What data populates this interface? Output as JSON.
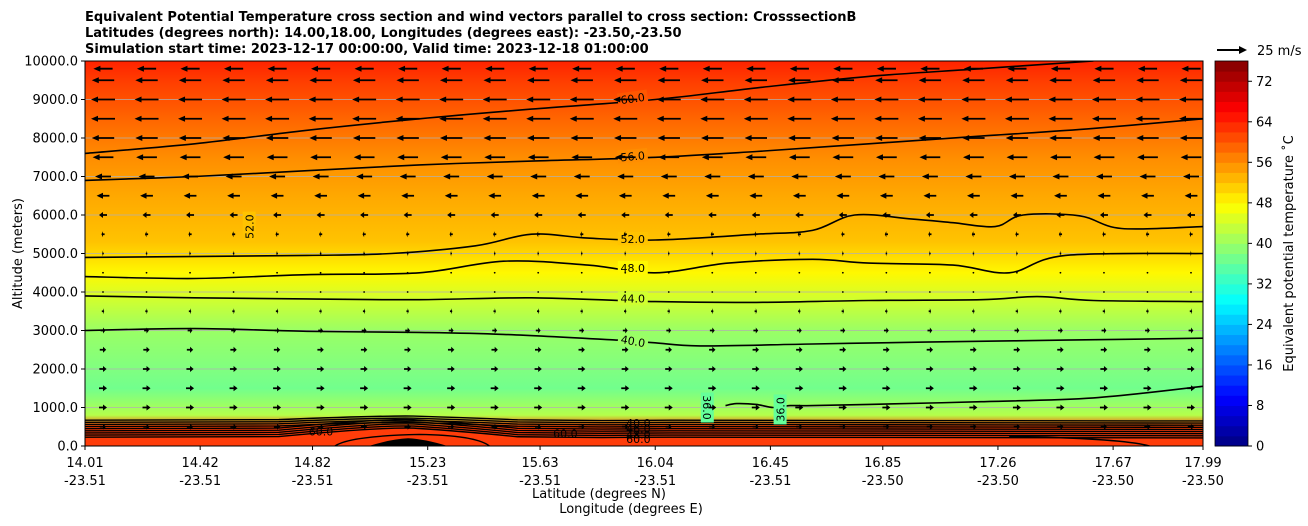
{
  "chart_data": {
    "type": "heatmap",
    "title_lines": [
      "Equivalent Potential Temperature cross section and wind vectors parallel to cross section: CrosssectionB",
      "Latitudes (degrees north): 14.00,18.00, Longitudes (degrees east): -23.50,-23.50",
      "Simulation start time: 2023-12-17 00:00:00, Valid time: 2023-12-18 01:00:00"
    ],
    "xlabel": "Latitude (degrees N)",
    "xlabel2": "Longitude (degrees E)",
    "ylabel": "Altitude (meters)",
    "ylim": [
      0,
      10000
    ],
    "y_ticks": [
      "0.0",
      "1000.0",
      "2000.0",
      "3000.0",
      "4000.0",
      "5000.0",
      "6000.0",
      "7000.0",
      "8000.0",
      "9000.0",
      "10000.0"
    ],
    "y_tick_values": [
      0,
      1000,
      2000,
      3000,
      4000,
      5000,
      6000,
      7000,
      8000,
      9000,
      10000
    ],
    "x_range": [
      14.01,
      17.99
    ],
    "x_ticks_lat": [
      "14.01",
      "14.42",
      "14.82",
      "15.23",
      "15.63",
      "16.04",
      "16.45",
      "16.85",
      "17.26",
      "17.67",
      "17.99"
    ],
    "x_ticks_lon": [
      "-23.51",
      "-23.51",
      "-23.51",
      "-23.51",
      "-23.51",
      "-23.51",
      "-23.51",
      "-23.50",
      "-23.50",
      "-23.50",
      "-23.50"
    ],
    "x_tick_values": [
      14.01,
      14.42,
      14.82,
      15.23,
      15.63,
      16.04,
      16.45,
      16.85,
      17.26,
      17.67,
      17.99
    ],
    "colorbar": {
      "label": "Equivalent potential temperature ˚C",
      "range": [
        0,
        76
      ],
      "ticks": [
        "0",
        "8",
        "16",
        "24",
        "32",
        "40",
        "48",
        "56",
        "64",
        "72"
      ],
      "tick_values": [
        0,
        8,
        16,
        24,
        32,
        40,
        48,
        56,
        64,
        72
      ]
    },
    "quiver_key": {
      "label": "25 m/s",
      "magnitude": 25
    },
    "theta_e_profile": [
      {
        "alt": 0,
        "value": 62
      },
      {
        "alt": 500,
        "value": 62
      },
      {
        "alt": 800,
        "value": 42
      },
      {
        "alt": 1500,
        "value": 37
      },
      {
        "alt": 2000,
        "value": 38
      },
      {
        "alt": 3000,
        "value": 40
      },
      {
        "alt": 3800,
        "value": 44
      },
      {
        "alt": 4500,
        "value": 48
      },
      {
        "alt": 5300,
        "value": 52
      },
      {
        "alt": 6500,
        "value": 54
      },
      {
        "alt": 7500,
        "value": 56
      },
      {
        "alt": 8500,
        "value": 59
      },
      {
        "alt": 9500,
        "value": 62
      },
      {
        "alt": 10000,
        "value": 64
      }
    ],
    "contours": [
      {
        "level": "36.0",
        "points": [
          [
            16.29,
            1050
          ],
          [
            16.33,
            1100
          ],
          [
            16.4,
            1080
          ],
          [
            16.46,
            1000
          ],
          [
            16.52,
            1050
          ],
          [
            16.6,
            1050
          ],
          [
            16.8,
            1080
          ],
          [
            17.2,
            1150
          ],
          [
            17.6,
            1250
          ],
          [
            17.99,
            1550
          ]
        ],
        "labels": [
          {
            "text": "36.0",
            "x": 16.22,
            "y": 1000,
            "rot": 90
          },
          {
            "text": "36.0",
            "x": 16.49,
            "y": 950,
            "rot": -90
          }
        ]
      },
      {
        "level": "40.0",
        "points": [
          [
            14.01,
            3000
          ],
          [
            14.4,
            3050
          ],
          [
            14.8,
            2980
          ],
          [
            15.2,
            2950
          ],
          [
            15.5,
            2900
          ],
          [
            15.9,
            2750
          ],
          [
            16.04,
            2680
          ],
          [
            16.2,
            2600
          ],
          [
            16.6,
            2650
          ],
          [
            17.0,
            2700
          ],
          [
            17.5,
            2750
          ],
          [
            17.99,
            2800
          ]
        ],
        "labels": [
          {
            "text": "40.0",
            "x": 15.96,
            "y": 2700,
            "rot": 10
          }
        ]
      },
      {
        "level": "44.0",
        "points": [
          [
            14.01,
            3900
          ],
          [
            14.4,
            3850
          ],
          [
            14.8,
            3820
          ],
          [
            15.2,
            3800
          ],
          [
            15.6,
            3850
          ],
          [
            16.04,
            3750
          ],
          [
            16.4,
            3730
          ],
          [
            16.8,
            3780
          ],
          [
            17.2,
            3800
          ],
          [
            17.4,
            3880
          ],
          [
            17.6,
            3780
          ],
          [
            17.99,
            3750
          ]
        ],
        "labels": [
          {
            "text": "44.0",
            "x": 15.96,
            "y": 3800,
            "rot": 0
          }
        ]
      },
      {
        "level": "48.0",
        "points": [
          [
            14.01,
            4400
          ],
          [
            14.4,
            4350
          ],
          [
            14.8,
            4450
          ],
          [
            15.2,
            4500
          ],
          [
            15.5,
            4800
          ],
          [
            15.8,
            4700
          ],
          [
            16.04,
            4500
          ],
          [
            16.3,
            4750
          ],
          [
            16.6,
            4850
          ],
          [
            16.8,
            4750
          ],
          [
            17.1,
            4700
          ],
          [
            17.3,
            4500
          ],
          [
            17.5,
            4950
          ],
          [
            17.99,
            5000
          ]
        ],
        "labels": [
          {
            "text": "48.0",
            "x": 15.96,
            "y": 4600,
            "rot": 0
          }
        ]
      },
      {
        "level": "52.0",
        "points": [
          [
            14.01,
            4900
          ],
          [
            14.8,
            4950
          ],
          [
            15.1,
            5000
          ],
          [
            15.4,
            5200
          ],
          [
            15.6,
            5500
          ],
          [
            15.8,
            5400
          ],
          [
            16.04,
            5350
          ],
          [
            16.4,
            5500
          ],
          [
            16.6,
            5600
          ],
          [
            16.75,
            6000
          ],
          [
            16.95,
            5900
          ],
          [
            17.1,
            5800
          ],
          [
            17.25,
            5700
          ],
          [
            17.35,
            6000
          ],
          [
            17.55,
            5980
          ],
          [
            17.7,
            5650
          ],
          [
            17.99,
            5700
          ]
        ],
        "labels": [
          {
            "text": "52.0",
            "x": 15.96,
            "y": 5350,
            "rot": 0
          },
          {
            "text": "52.0",
            "x": 14.6,
            "y": 5700,
            "rot": -90
          }
        ]
      },
      {
        "level": "56.0",
        "points": [
          [
            14.01,
            6900
          ],
          [
            14.4,
            7000
          ],
          [
            14.8,
            7150
          ],
          [
            15.2,
            7300
          ],
          [
            15.6,
            7400
          ],
          [
            16.04,
            7500
          ],
          [
            16.4,
            7650
          ],
          [
            16.8,
            7850
          ],
          [
            17.2,
            8050
          ],
          [
            17.6,
            8250
          ],
          [
            17.99,
            8500
          ]
        ],
        "labels": [
          {
            "text": "56.0",
            "x": 15.96,
            "y": 7500,
            "rot": -5
          }
        ]
      },
      {
        "level": "60.0",
        "points": [
          [
            14.01,
            7600
          ],
          [
            14.4,
            7850
          ],
          [
            14.8,
            8200
          ],
          [
            15.2,
            8500
          ],
          [
            15.6,
            8750
          ],
          [
            16.04,
            9000
          ],
          [
            16.4,
            9300
          ],
          [
            16.8,
            9600
          ],
          [
            17.2,
            9800
          ],
          [
            17.6,
            10000
          ]
        ],
        "labels": [
          {
            "text": "60.0",
            "x": 15.96,
            "y": 9000,
            "rot": -8
          }
        ]
      }
    ],
    "surface_labels": [
      {
        "text": "60.0",
        "x": 14.85,
        "y": 380
      },
      {
        "text": "60.0",
        "x": 15.72,
        "y": 330
      },
      {
        "text": "40.0",
        "x": 15.98,
        "y": 600
      },
      {
        "text": "46.0",
        "x": 15.98,
        "y": 450
      },
      {
        "text": "48.0",
        "x": 15.98,
        "y": 300
      },
      {
        "text": "60.0",
        "x": 15.98,
        "y": 180
      }
    ],
    "wind_profile": [
      {
        "alt": 9800,
        "u": -12
      },
      {
        "alt": 9500,
        "u": -14
      },
      {
        "alt": 9000,
        "u": -15
      },
      {
        "alt": 8500,
        "u": -15
      },
      {
        "alt": 8000,
        "u": -14
      },
      {
        "alt": 7500,
        "u": -13
      },
      {
        "alt": 7000,
        "u": -10
      },
      {
        "alt": 6500,
        "u": -8
      },
      {
        "alt": 6000,
        "u": -5
      },
      {
        "alt": 5500,
        "u": -2
      },
      {
        "alt": 5000,
        "u": -1
      },
      {
        "alt": 4500,
        "u": 0
      },
      {
        "alt": 4000,
        "u": 0.5
      },
      {
        "alt": 3500,
        "u": 1.5
      },
      {
        "alt": 3000,
        "u": 3
      },
      {
        "alt": 2500,
        "u": 4
      },
      {
        "alt": 2000,
        "u": 4.5
      },
      {
        "alt": 1500,
        "u": 5
      },
      {
        "alt": 1000,
        "u": 5
      },
      {
        "alt": 500,
        "u": 4
      }
    ],
    "wind_columns": 26
  }
}
